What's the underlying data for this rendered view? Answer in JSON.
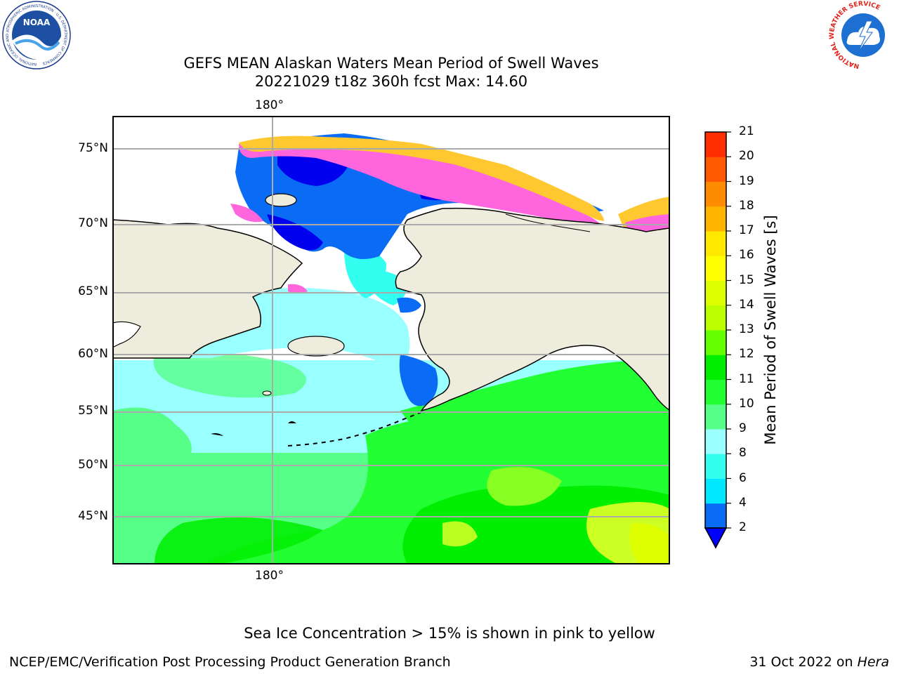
{
  "title": {
    "line1": "GEFS MEAN Alaskan Waters Mean Period of Swell Waves",
    "line2": "20221029 t18z 360h fcst   Max: 14.60"
  },
  "map": {
    "top_lon_label": "180°",
    "bottom_lon_label": "180°",
    "lat_labels": [
      "75°N",
      "70°N",
      "65°N",
      "60°N",
      "55°N",
      "50°N",
      "45°N"
    ],
    "colors": {
      "land": "#eeecdc",
      "coast": "#000000",
      "grid": "#aaaaaa",
      "ice_pink": "#ff66dd",
      "ice_yellow": "#ffc830"
    }
  },
  "colorbar": {
    "label": "Mean Period of Swell Waves [s]",
    "ticks": [
      "2",
      "4",
      "6",
      "8",
      "9",
      "10",
      "11",
      "12",
      "13",
      "14",
      "15",
      "16",
      "17",
      "18",
      "19",
      "20",
      "21"
    ],
    "colors": [
      "#0a6cf5",
      "#00e8ff",
      "#33fff0",
      "#99ffff",
      "#55ff88",
      "#22ff33",
      "#00ee00",
      "#66ff00",
      "#bbff00",
      "#ddff00",
      "#ffff00",
      "#ffe800",
      "#ffb400",
      "#ff8c00",
      "#ff5a00",
      "#ff2d00",
      "#ff0000"
    ],
    "extend_color": "#0000ff"
  },
  "note": "Sea Ice Concentration > 15% is shown in pink to yellow",
  "footer": {
    "left": "NCEP/EMC/Verification Post Processing Product Generation Branch",
    "right_date": "31 Oct 2022 on ",
    "right_host": "Hera"
  },
  "logos": {
    "noaa_text": "NOAA",
    "noaa_ring": "NATIONAL OCEANIC AND ATMOSPHERIC ADMINISTRATION · U.S. DEPARTMENT OF COMMERCE",
    "nws_ring": "NATIONAL WEATHER SERVICE"
  }
}
